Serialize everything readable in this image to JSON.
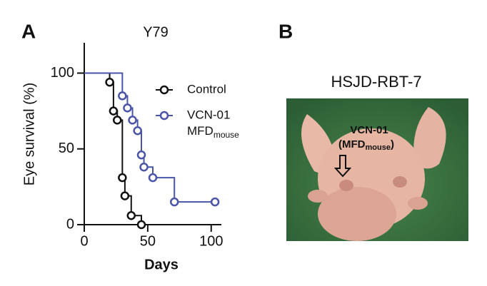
{
  "chart_data": {
    "type": "step",
    "panel_label": "A",
    "title": "Y79",
    "xlabel": "Days",
    "ylabel": "Eye survival (%)",
    "xlim": [
      0,
      108
    ],
    "ylim": [
      0,
      120
    ],
    "xticks": [
      0,
      50,
      100
    ],
    "yticks": [
      0,
      50,
      100
    ],
    "series": [
      {
        "name": "Control",
        "color": "#111111",
        "x": [
          0,
          20,
          23,
          26,
          30,
          32,
          37,
          45
        ],
        "values": [
          100,
          94,
          75,
          69,
          31,
          19,
          6,
          0
        ]
      },
      {
        "name": "VCN-01",
        "name_line2": "MFD",
        "name_sub": "mouse",
        "color": "#4a55a8",
        "x": [
          0,
          30,
          34,
          38,
          42,
          45,
          47,
          54,
          71,
          103
        ],
        "values": [
          100,
          85,
          77,
          69,
          62,
          46,
          38,
          31,
          15,
          15
        ]
      }
    ]
  },
  "panel_b": {
    "label": "B",
    "title": "HSJD-RBT-7",
    "annotation_line1": "VCN-01",
    "annotation_open": "(MFD",
    "annotation_sub": "mouse",
    "annotation_close": ")"
  }
}
